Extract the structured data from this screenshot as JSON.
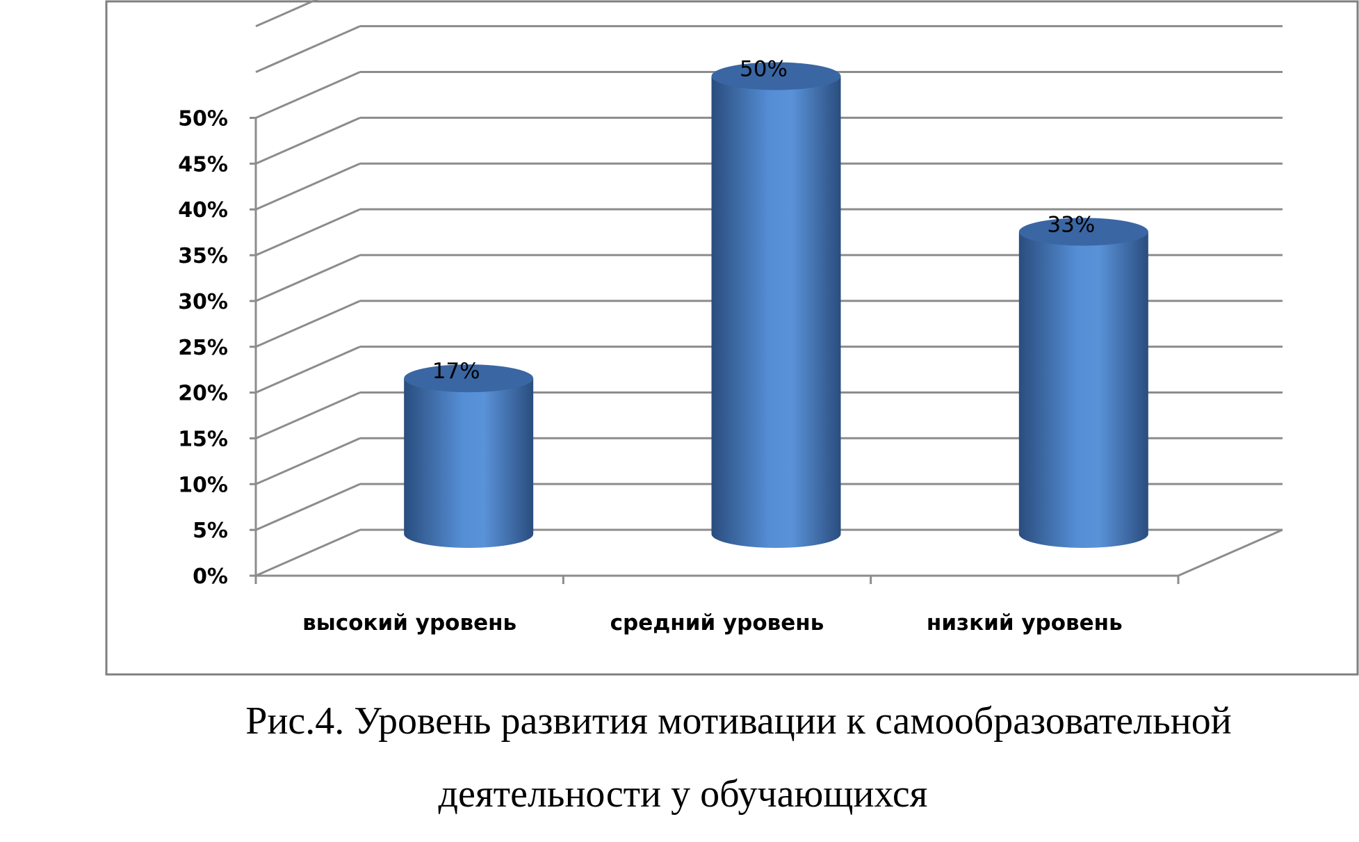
{
  "chart_data": {
    "type": "bar",
    "style": "3d-cylinder",
    "categories": [
      "высокий уровень",
      "средний уровень",
      "низкий уровень"
    ],
    "values": [
      17,
      50,
      33
    ],
    "data_labels": [
      "17%",
      "50%",
      "33%"
    ],
    "yticks": [
      "0%",
      "5%",
      "10%",
      "15%",
      "20%",
      "25%",
      "30%",
      "35%",
      "40%",
      "45%",
      "50%"
    ],
    "ylim": [
      0,
      60
    ],
    "grid": true,
    "bar_color": "#4f81bd",
    "title": "",
    "xlabel": "",
    "ylabel": ""
  },
  "caption": {
    "line1": "Рис.4. Уровень развития мотивации к самообразовательной",
    "line2": "деятельности у обучающихся"
  }
}
